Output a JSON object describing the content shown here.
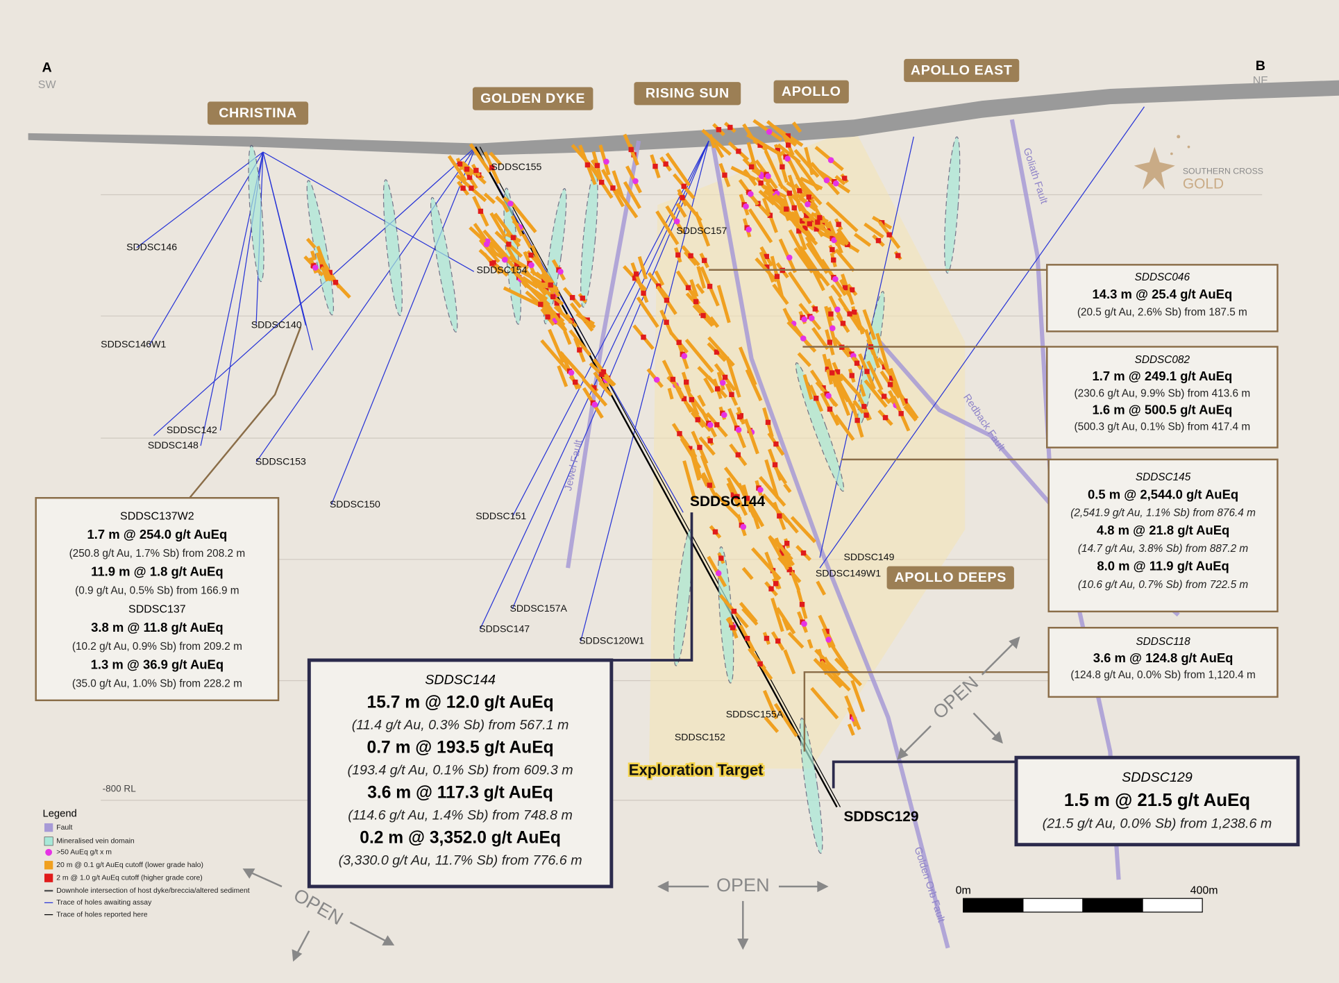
{
  "section": {
    "start": {
      "letter": "A",
      "direction": "SW"
    },
    "end": {
      "letter": "B",
      "direction": "NE"
    }
  },
  "prospects": [
    "CHRISTINA",
    "GOLDEN DYKE",
    "RISING SUN",
    "APOLLO",
    "APOLLO EAST",
    "APOLLO DEEPS"
  ],
  "logo": {
    "line1": "SOUTHERN CROSS",
    "line2": "GOLD"
  },
  "faults": [
    "Goliath Fault",
    "Redback Fault",
    "Jewel Fault",
    "Golden Orb Fault"
  ],
  "holes": [
    "SDDSC146",
    "SDDSC146W1",
    "SDDSC140",
    "SDDSC142",
    "SDDSC148",
    "SDDSC153",
    "SDDSC150",
    "SDDSC155",
    "SDDSC154",
    "SDDSC151",
    "SDDSC157",
    "SDDSC157A",
    "SDDSC147",
    "SDDSC120W1",
    "SDDSC155A",
    "SDDSC152",
    "SDDSC149",
    "SDDSC149W1",
    "SDDSC144",
    "SDDSC129"
  ],
  "rl_label": "-800 RL",
  "exploration_target": "Exploration Target",
  "callouts": [
    {
      "holes": [
        {
          "name": "SDDSC046",
          "intercepts": [
            {
              "result": "14.3 m @ 25.4 g/t AuEq",
              "detail": "(20.5 g/t Au, 2.6% Sb) from 187.5 m"
            }
          ]
        }
      ]
    },
    {
      "holes": [
        {
          "name": "SDDSC082",
          "intercepts": [
            {
              "result": "1.7 m @ 249.1 g/t AuEq",
              "detail": "(230.6 g/t Au, 9.9% Sb) from 413.6 m"
            },
            {
              "result": "1.6 m @ 500.5 g/t AuEq",
              "detail": "(500.3 g/t Au, 0.1% Sb) from 417.4 m"
            }
          ]
        }
      ]
    },
    {
      "holes": [
        {
          "name": "SDDSC145",
          "intercepts": [
            {
              "result": "0.5 m @ 2,544.0 g/t AuEq",
              "detail": "(2,541.9 g/t Au, 1.1% Sb) from 876.4 m"
            },
            {
              "result": "4.8 m @ 21.8 g/t AuEq",
              "detail": "(14.7 g/t Au, 3.8% Sb) from 887.2 m"
            },
            {
              "result": "8.0 m @ 11.9 g/t AuEq",
              "detail": "(10.6 g/t Au, 0.7% Sb) from 722.5 m"
            }
          ]
        }
      ]
    },
    {
      "holes": [
        {
          "name": "SDDSC118",
          "intercepts": [
            {
              "result": "3.6 m @ 124.8 g/t AuEq",
              "detail": "(124.8 g/t Au, 0.0% Sb) from 1,120.4 m"
            }
          ]
        }
      ]
    },
    {
      "holes": [
        {
          "name": "SDDSC129",
          "intercepts": [
            {
              "result": "1.5 m @ 21.5 g/t AuEq",
              "detail": "(21.5 g/t Au, 0.0% Sb) from 1,238.6 m"
            }
          ]
        }
      ]
    },
    {
      "holes": [
        {
          "name": "SDDSC137W2",
          "intercepts": [
            {
              "result": "1.7 m @ 254.0 g/t AuEq",
              "detail": "(250.8 g/t Au, 1.7% Sb) from 208.2 m"
            },
            {
              "result": "11.9 m @ 1.8 g/t AuEq",
              "detail": "(0.9 g/t Au, 0.5% Sb) from 166.9 m"
            }
          ]
        },
        {
          "name": "SDDSC137",
          "intercepts": [
            {
              "result": "3.8 m @ 11.8 g/t AuEq",
              "detail": "(10.2 g/t Au, 0.9% Sb) from 209.2 m"
            },
            {
              "result": "1.3 m @ 36.9 g/t AuEq",
              "detail": "(35.0 g/t Au, 1.0% Sb) from 228.2 m"
            }
          ]
        }
      ]
    },
    {
      "holes": [
        {
          "name": "SDDSC144",
          "intercepts": [
            {
              "result": "15.7 m @ 12.0 g/t AuEq",
              "detail": "(11.4 g/t Au, 0.3% Sb) from 567.1 m"
            },
            {
              "result": "0.7 m @ 193.5 g/t AuEq",
              "detail": "(193.4 g/t Au, 0.1% Sb) from 609.3 m"
            },
            {
              "result": "3.6 m @ 117.3 g/t AuEq",
              "detail": "(114.6 g/t Au, 1.4% Sb) from 748.8 m"
            },
            {
              "result": "0.2 m @ 3,352.0 g/t AuEq",
              "detail": "(3,330.0 g/t Au, 11.7% Sb) from 776.6 m"
            }
          ]
        }
      ]
    }
  ],
  "legend": {
    "title": "Legend",
    "items": [
      "Fault",
      "Mineralised vein domain",
      ">50 AuEq g/t x m",
      "20 m @ 0.1 g/t AuEq cutoff (lower grade halo)",
      "2 m @ 1.0 g/t AuEq cutoff (higher grade core)",
      "Downhole intersection of host dyke/breccia/altered sediment",
      "Trace of holes awaiting assay",
      "Trace of holes reported here"
    ]
  },
  "scale": {
    "start": "0m",
    "end": "400m"
  },
  "open_labels": [
    "OPEN",
    "OPEN",
    "OPEN"
  ]
}
